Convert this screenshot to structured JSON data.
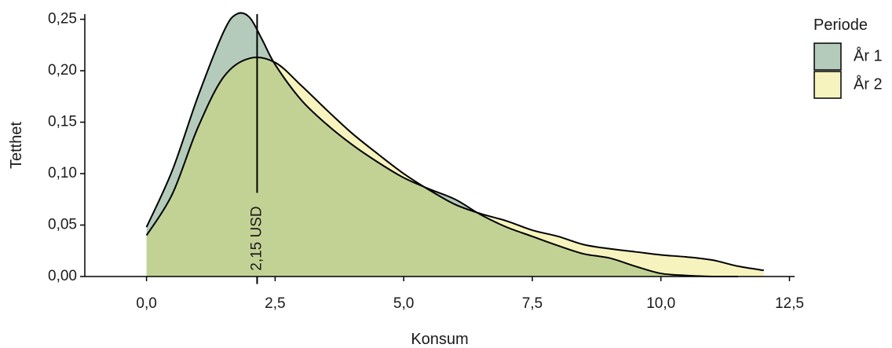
{
  "chart_data": {
    "type": "area",
    "xlabel": "Konsum",
    "ylabel": "Tetthet",
    "xlim": [
      -1.2,
      12.6
    ],
    "ylim": [
      0,
      0.255
    ],
    "x_ticks": [
      0,
      2.5,
      5,
      7.5,
      10,
      12.5
    ],
    "x_tick_labels": [
      "0,0",
      "2,5",
      "5,0",
      "7,5",
      "10,0",
      "12,5"
    ],
    "y_ticks": [
      0,
      0.05,
      0.1,
      0.15,
      0.2,
      0.25
    ],
    "y_tick_labels": [
      "0,00",
      "0,05",
      "0,10",
      "0,15",
      "0,20",
      "0,25"
    ],
    "legend": {
      "title": "Periode",
      "position": "right"
    },
    "series": [
      {
        "name": "År 1",
        "color": "#b4cbbb",
        "x": [
          0,
          0.5,
          1.0,
          1.5,
          1.75,
          2.0,
          2.25,
          2.5,
          3.0,
          3.5,
          4.0,
          4.5,
          5.0,
          5.5,
          6.0,
          6.5,
          7.0,
          7.5,
          8.0,
          8.5,
          9.0,
          9.5,
          10.0,
          10.5,
          11.0,
          11.5
        ],
        "values": [
          0.048,
          0.103,
          0.175,
          0.238,
          0.255,
          0.252,
          0.23,
          0.206,
          0.172,
          0.148,
          0.128,
          0.111,
          0.096,
          0.085,
          0.075,
          0.06,
          0.048,
          0.039,
          0.03,
          0.022,
          0.018,
          0.01,
          0.003,
          0.001,
          0.0,
          0.0
        ]
      },
      {
        "name": "År 2",
        "color": "#f6f3be",
        "x": [
          0,
          0.5,
          1.0,
          1.5,
          2.0,
          2.5,
          3.0,
          3.5,
          4.0,
          4.5,
          5.0,
          5.5,
          6.0,
          6.5,
          7.0,
          7.5,
          8.0,
          8.5,
          9.0,
          9.5,
          10.0,
          10.5,
          11.0,
          11.5,
          12.0
        ],
        "values": [
          0.04,
          0.08,
          0.145,
          0.194,
          0.212,
          0.208,
          0.186,
          0.162,
          0.139,
          0.119,
          0.1,
          0.084,
          0.07,
          0.061,
          0.054,
          0.045,
          0.039,
          0.031,
          0.027,
          0.024,
          0.021,
          0.019,
          0.016,
          0.01,
          0.006
        ]
      }
    ],
    "overlap_color": "#c2d295",
    "annotations": [
      {
        "type": "vline",
        "x": 2.15,
        "y_top": 0.255,
        "label": "2,15 USD",
        "label_y": 0.037
      }
    ]
  }
}
